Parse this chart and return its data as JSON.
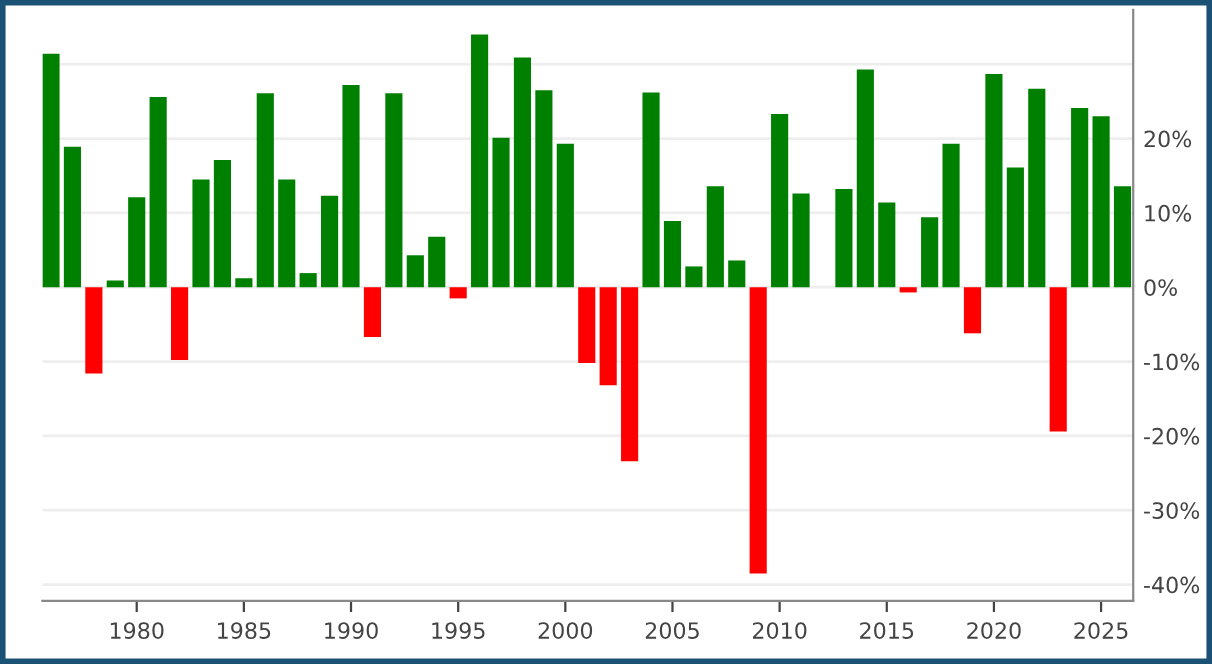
{
  "chart_data": {
    "type": "bar",
    "x": [
      1976,
      1977,
      1978,
      1979,
      1980,
      1981,
      1982,
      1983,
      1984,
      1985,
      1986,
      1987,
      1988,
      1989,
      1990,
      1991,
      1992,
      1993,
      1994,
      1995,
      1996,
      1997,
      1998,
      1999,
      2000,
      2001,
      2002,
      2003,
      2004,
      2005,
      2006,
      2007,
      2008,
      2009,
      2010,
      2011,
      2012,
      2013,
      2014,
      2015,
      2016,
      2017,
      2018,
      2019,
      2020,
      2021,
      2022,
      2023,
      2024,
      2025,
      2026
    ],
    "values": [
      31.4,
      18.9,
      -11.6,
      0.9,
      12.1,
      25.6,
      -9.8,
      14.5,
      17.1,
      1.2,
      26.1,
      14.5,
      1.9,
      12.3,
      27.2,
      -6.7,
      26.1,
      4.3,
      6.8,
      -1.5,
      34.0,
      20.1,
      30.9,
      26.5,
      19.3,
      -10.2,
      -13.2,
      -23.4,
      26.2,
      8.9,
      2.8,
      13.6,
      3.6,
      -38.5,
      23.3,
      12.6,
      null,
      13.2,
      29.3,
      11.4,
      -0.7,
      9.4,
      19.3,
      -6.2,
      28.7,
      16.1,
      26.7,
      -19.4,
      24.1,
      23.0,
      13.6
    ],
    "colors": [
      "#008000",
      "#008000",
      "#ff0000",
      "#008000",
      "#008000",
      "#008000",
      "#ff0000",
      "#008000",
      "#008000",
      "#008000",
      "#008000",
      "#008000",
      "#008000",
      "#008000",
      "#008000",
      "#ff0000",
      "#008000",
      "#008000",
      "#008000",
      "#ff0000",
      "#008000",
      "#008000",
      "#008000",
      "#008000",
      "#008000",
      "#ff0000",
      "#ff0000",
      "#ff0000",
      "#008000",
      "#008000",
      "#008000",
      "#008000",
      "#008000",
      "#ff0000",
      "#008000",
      "#008000",
      "#008000",
      "#008000",
      "#008000",
      "#008000",
      "#ff0000",
      "#008000",
      "#008000",
      "#ff0000",
      "#008000",
      "#008000",
      "#008000",
      "#ff0000",
      "#008000",
      "#008000",
      "#008000"
    ],
    "xlim": [
      1975.6,
      2026.5
    ],
    "xticks": [
      1980,
      1985,
      1990,
      1995,
      2000,
      2005,
      2010,
      2015,
      2020,
      2025
    ],
    "ylim": [
      -42.2,
      37.3
    ],
    "yticks": [
      {
        "value": 30,
        "label": null
      },
      {
        "value": 20,
        "label": "20%"
      },
      {
        "value": 10,
        "label": "10%"
      },
      {
        "value": 0,
        "label": "0%"
      },
      {
        "value": -10,
        "label": "-10%"
      },
      {
        "value": -20,
        "label": "-20%"
      },
      {
        "value": -30,
        "label": "-30%"
      },
      {
        "value": -40,
        "label": "-40%"
      }
    ],
    "grid": "y"
  }
}
